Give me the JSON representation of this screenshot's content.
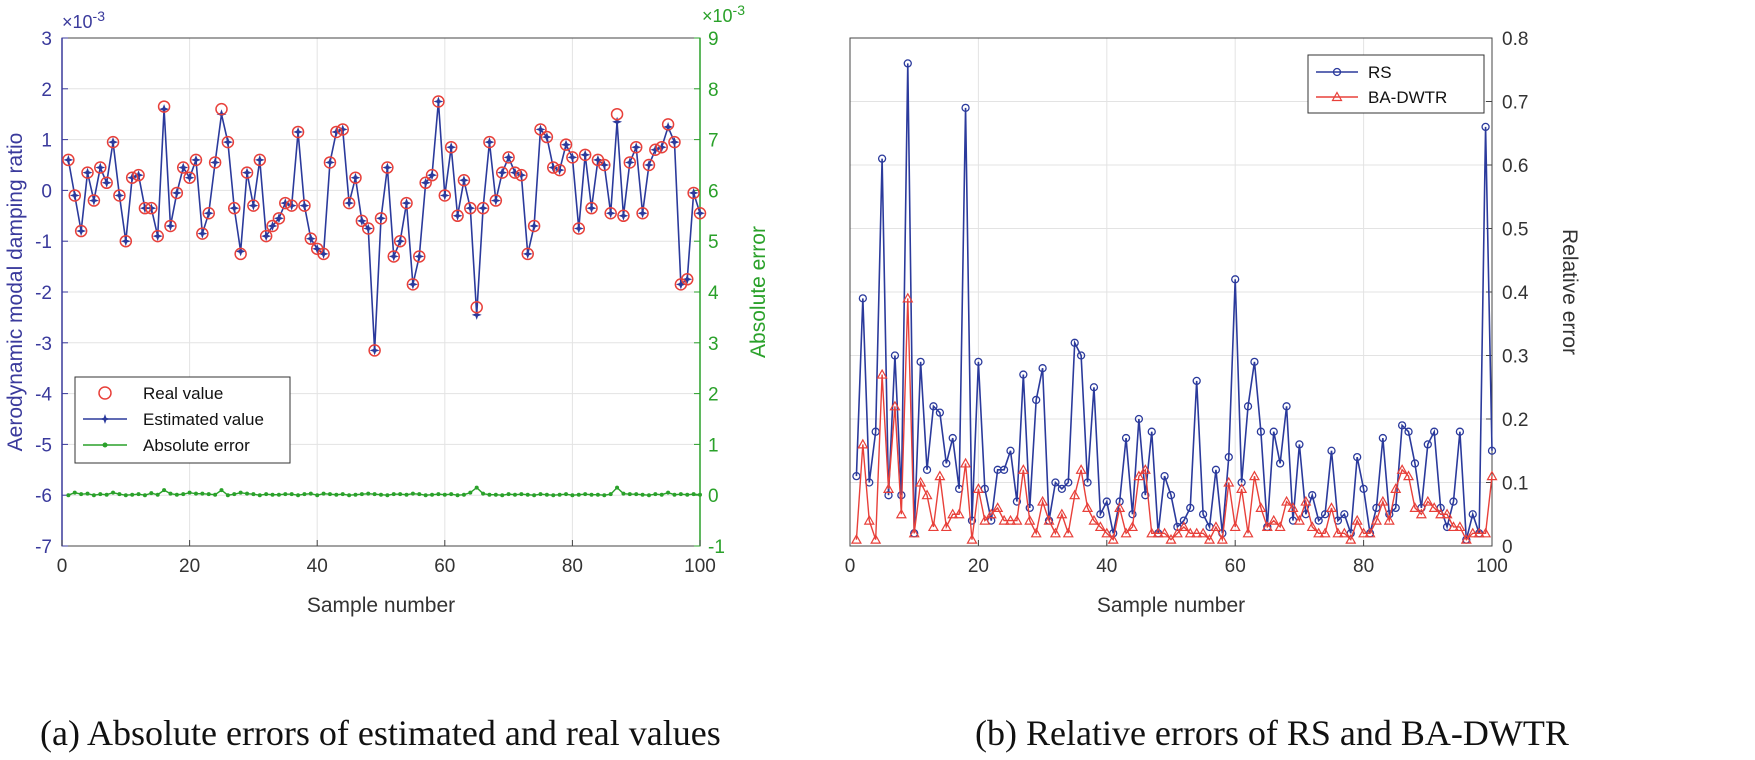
{
  "chart_data": [
    {
      "type": "line",
      "panel": "a",
      "caption": "(a) Absolute errors of estimated and real values",
      "title": "",
      "xlabel": "Sample number",
      "ylabel_left": "Aerodynamic modal damping ratio",
      "ylabel_right": "Absolute error",
      "left_multiplier": "×10",
      "left_multiplier_exp": "-3",
      "right_multiplier": "×10",
      "right_multiplier_exp": "-3",
      "xlim": [
        0,
        100
      ],
      "ylim_left": [
        -7,
        3
      ],
      "ylim_right": [
        -1,
        9
      ],
      "xticks": [
        "0",
        "20",
        "40",
        "60",
        "80",
        "100"
      ],
      "yticks_left": [
        "-7",
        "-6",
        "-5",
        "-4",
        "-3",
        "-2",
        "-1",
        "0",
        "1",
        "2",
        "3"
      ],
      "yticks_right": [
        "-1",
        "0",
        "1",
        "2",
        "3",
        "4",
        "5",
        "6",
        "7",
        "8",
        "9"
      ],
      "grid": true,
      "legend_position": "bottom-left",
      "colors": {
        "real": "#e8403a",
        "estimated": "#2b3a9c",
        "error": "#2aa12a",
        "left_axis": "#3a3a9c",
        "right_axis": "#2aa12a"
      },
      "x": [
        1,
        2,
        3,
        4,
        5,
        6,
        7,
        8,
        9,
        10,
        11,
        12,
        13,
        14,
        15,
        16,
        17,
        18,
        19,
        20,
        21,
        22,
        23,
        24,
        25,
        26,
        27,
        28,
        29,
        30,
        31,
        32,
        33,
        34,
        35,
        36,
        37,
        38,
        39,
        40,
        41,
        42,
        43,
        44,
        45,
        46,
        47,
        48,
        49,
        50,
        51,
        52,
        53,
        54,
        55,
        56,
        57,
        58,
        59,
        60,
        61,
        62,
        63,
        64,
        65,
        66,
        67,
        68,
        69,
        70,
        71,
        72,
        73,
        74,
        75,
        76,
        77,
        78,
        79,
        80,
        81,
        82,
        83,
        84,
        85,
        86,
        87,
        88,
        89,
        90,
        91,
        92,
        93,
        94,
        95,
        96,
        97,
        98,
        99,
        100
      ],
      "series": [
        {
          "name": "Real value",
          "marker": "circle",
          "values": [
            0.6,
            -0.1,
            -0.8,
            0.35,
            -0.2,
            0.45,
            0.15,
            0.95,
            -0.1,
            -1.0,
            0.25,
            0.3,
            -0.35,
            -0.35,
            -0.9,
            1.65,
            -0.7,
            -0.05,
            0.45,
            0.25,
            0.6,
            -0.85,
            -0.45,
            0.55,
            1.6,
            0.95,
            -0.35,
            -1.25,
            0.35,
            -0.3,
            0.6,
            -0.9,
            -0.7,
            -0.55,
            -0.25,
            -0.3,
            1.15,
            -0.3,
            -0.95,
            -1.15,
            -1.25,
            0.55,
            1.15,
            1.2,
            -0.25,
            0.25,
            -0.6,
            -0.75,
            -3.15,
            -0.55,
            0.45,
            -1.3,
            -1.0,
            -0.25,
            -1.85,
            -1.3,
            0.15,
            0.3,
            1.75,
            -0.1,
            0.85,
            -0.5,
            0.2,
            -0.35,
            -2.3,
            -0.35,
            0.95,
            -0.2,
            0.35,
            0.65,
            0.35,
            0.3,
            -1.25,
            -0.7,
            1.2,
            1.05,
            0.45,
            0.4,
            0.9,
            0.65,
            -0.75,
            0.7,
            -0.35,
            0.6,
            0.5,
            -0.45,
            1.5,
            -0.5,
            0.55,
            0.85,
            -0.45,
            0.5,
            0.8,
            0.85,
            1.3,
            0.95,
            -1.85,
            -1.75,
            -0.05,
            -0.45
          ]
        },
        {
          "name": "Estimated value",
          "marker": "star",
          "values": [
            0.6,
            -0.1,
            -0.8,
            0.35,
            -0.2,
            0.45,
            0.15,
            0.95,
            -0.1,
            -1.0,
            0.25,
            0.3,
            -0.35,
            -0.35,
            -0.9,
            1.6,
            -0.7,
            -0.05,
            0.45,
            0.25,
            0.6,
            -0.85,
            -0.45,
            0.55,
            1.5,
            0.95,
            -0.35,
            -1.2,
            0.35,
            -0.3,
            0.6,
            -0.9,
            -0.7,
            -0.55,
            -0.25,
            -0.3,
            1.15,
            -0.3,
            -0.95,
            -1.15,
            -1.25,
            0.55,
            1.15,
            1.2,
            -0.25,
            0.25,
            -0.6,
            -0.75,
            -3.15,
            -0.55,
            0.45,
            -1.3,
            -1.0,
            -0.25,
            -1.85,
            -1.3,
            0.15,
            0.3,
            1.75,
            -0.1,
            0.85,
            -0.5,
            0.2,
            -0.35,
            -2.45,
            -0.35,
            0.95,
            -0.2,
            0.35,
            0.65,
            0.35,
            0.3,
            -1.25,
            -0.7,
            1.2,
            1.05,
            0.45,
            0.4,
            0.9,
            0.65,
            -0.75,
            0.7,
            -0.35,
            0.6,
            0.5,
            -0.45,
            1.35,
            -0.5,
            0.55,
            0.85,
            -0.45,
            0.5,
            0.8,
            0.85,
            1.25,
            0.95,
            -1.85,
            -1.75,
            -0.05,
            -0.45
          ]
        },
        {
          "name": "Absolute error",
          "marker": "dot",
          "axis": "right",
          "values": [
            0,
            0.05,
            0.02,
            0.03,
            0,
            0.02,
            0.01,
            0.05,
            0.02,
            0,
            0.01,
            0.02,
            0,
            0.04,
            0.01,
            0.1,
            0.03,
            0.01,
            0.02,
            0.05,
            0.03,
            0.03,
            0.02,
            0.01,
            0.1,
            0,
            0.02,
            0.05,
            0.03,
            0.02,
            0,
            0.02,
            0.01,
            0.01,
            0.02,
            0.02,
            0,
            0.02,
            0.03,
            0,
            0.03,
            0.02,
            0.01,
            0.02,
            0,
            0.01,
            0.02,
            0.03,
            0.02,
            0.01,
            0,
            0.02,
            0.02,
            0.01,
            0.03,
            0.02,
            0,
            0.01,
            0.02,
            0.01,
            0.02,
            0,
            0.01,
            0.05,
            0.15,
            0.03,
            0.01,
            0.01,
            0,
            0.02,
            0.01,
            0.02,
            0.01,
            0,
            0.02,
            0.01,
            0,
            0.01,
            0.02,
            0,
            0.01,
            0.02,
            0.01,
            0.01,
            0,
            0.02,
            0.15,
            0.03,
            0.02,
            0.02,
            0.01,
            0,
            0.02,
            0.01,
            0.05,
            0.01,
            0.02,
            0.01,
            0.02,
            0.01
          ]
        }
      ]
    },
    {
      "type": "line",
      "panel": "b",
      "caption": "(b) Relative errors of RS and BA-DWTR",
      "title": "",
      "xlabel": "Sample number",
      "ylabel": "Relative error",
      "xlim": [
        0,
        100
      ],
      "ylim": [
        0,
        0.8
      ],
      "xticks": [
        "0",
        "20",
        "40",
        "60",
        "80",
        "100"
      ],
      "yticks": [
        "0",
        "0.1",
        "0.2",
        "0.3",
        "0.4",
        "0.5",
        "0.6",
        "0.7",
        "0.8"
      ],
      "y_axis_side": "right",
      "grid": true,
      "legend_position": "top-right",
      "colors": {
        "rs": "#2b3a9c",
        "badwtr": "#e8403a"
      },
      "x": [
        1,
        2,
        3,
        4,
        5,
        6,
        7,
        8,
        9,
        10,
        11,
        12,
        13,
        14,
        15,
        16,
        17,
        18,
        19,
        20,
        21,
        22,
        23,
        24,
        25,
        26,
        27,
        28,
        29,
        30,
        31,
        32,
        33,
        34,
        35,
        36,
        37,
        38,
        39,
        40,
        41,
        42,
        43,
        44,
        45,
        46,
        47,
        48,
        49,
        50,
        51,
        52,
        53,
        54,
        55,
        56,
        57,
        58,
        59,
        60,
        61,
        62,
        63,
        64,
        65,
        66,
        67,
        68,
        69,
        70,
        71,
        72,
        73,
        74,
        75,
        76,
        77,
        78,
        79,
        80,
        81,
        82,
        83,
        84,
        85,
        86,
        87,
        88,
        89,
        90,
        91,
        92,
        93,
        94,
        95,
        96,
        97,
        98,
        99,
        100
      ],
      "series": [
        {
          "name": "RS",
          "marker": "circle",
          "values": [
            0.11,
            0.39,
            0.1,
            0.18,
            0.61,
            0.08,
            0.3,
            0.08,
            0.76,
            0.02,
            0.29,
            0.12,
            0.22,
            0.21,
            0.13,
            0.17,
            0.09,
            0.69,
            0.04,
            0.29,
            0.09,
            0.04,
            0.12,
            0.12,
            0.15,
            0.07,
            0.27,
            0.06,
            0.23,
            0.28,
            0.04,
            0.1,
            0.09,
            0.1,
            0.32,
            0.3,
            0.1,
            0.25,
            0.05,
            0.07,
            0.02,
            0.07,
            0.17,
            0.05,
            0.2,
            0.08,
            0.18,
            0.02,
            0.11,
            0.08,
            0.03,
            0.04,
            0.06,
            0.26,
            0.05,
            0.03,
            0.12,
            0.02,
            0.14,
            0.42,
            0.1,
            0.22,
            0.29,
            0.18,
            0.03,
            0.18,
            0.13,
            0.22,
            0.04,
            0.16,
            0.05,
            0.08,
            0.04,
            0.05,
            0.15,
            0.04,
            0.05,
            0.02,
            0.14,
            0.09,
            0.02,
            0.06,
            0.17,
            0.05,
            0.06,
            0.19,
            0.18,
            0.13,
            0.06,
            0.16,
            0.18,
            0.06,
            0.03,
            0.07,
            0.18,
            0.01,
            0.05,
            0.02,
            0.66,
            0.15
          ]
        },
        {
          "name": "BA-DWTR",
          "marker": "triangle",
          "values": [
            0.01,
            0.16,
            0.04,
            0.01,
            0.27,
            0.09,
            0.22,
            0.05,
            0.39,
            0.02,
            0.1,
            0.08,
            0.03,
            0.11,
            0.03,
            0.05,
            0.05,
            0.13,
            0.01,
            0.09,
            0.04,
            0.05,
            0.06,
            0.04,
            0.04,
            0.04,
            0.12,
            0.04,
            0.02,
            0.07,
            0.04,
            0.02,
            0.05,
            0.02,
            0.08,
            0.12,
            0.06,
            0.04,
            0.03,
            0.02,
            0.01,
            0.06,
            0.02,
            0.03,
            0.11,
            0.12,
            0.02,
            0.02,
            0.02,
            0.01,
            0.02,
            0.03,
            0.02,
            0.02,
            0.02,
            0.01,
            0.03,
            0.01,
            0.1,
            0.03,
            0.09,
            0.02,
            0.11,
            0.06,
            0.03,
            0.04,
            0.03,
            0.07,
            0.06,
            0.04,
            0.07,
            0.03,
            0.02,
            0.02,
            0.06,
            0.02,
            0.02,
            0.01,
            0.04,
            0.02,
            0.02,
            0.04,
            0.07,
            0.04,
            0.09,
            0.12,
            0.11,
            0.06,
            0.05,
            0.07,
            0.06,
            0.05,
            0.05,
            0.03,
            0.03,
            0.01,
            0.02,
            0.02,
            0.02,
            0.11
          ]
        }
      ]
    }
  ]
}
